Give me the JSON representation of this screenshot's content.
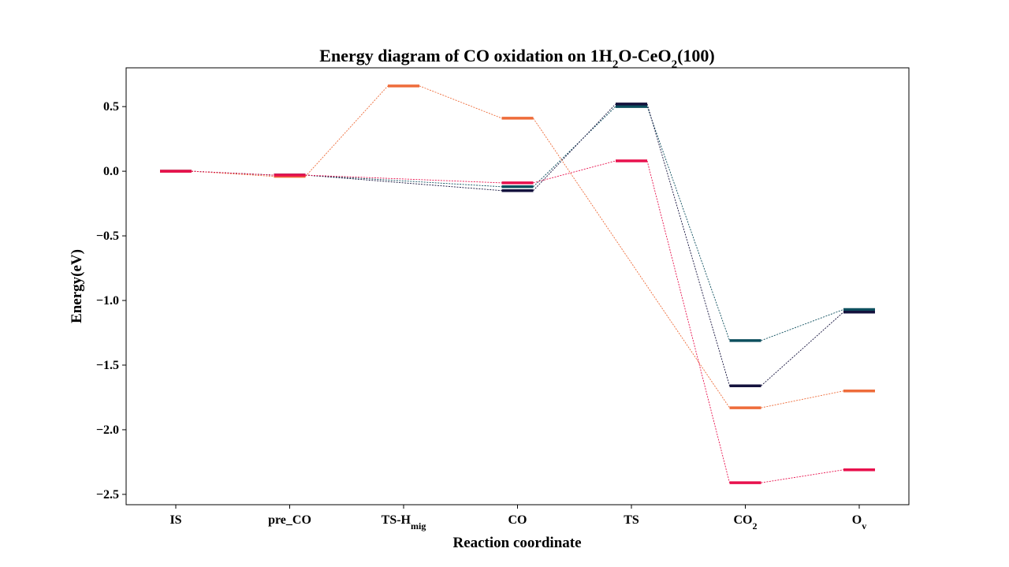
{
  "chart_data": {
    "type": "line",
    "title": {
      "parts": [
        {
          "text": "Energy diagram of CO oxidation on 1H",
          "style": "normal"
        },
        {
          "text": "2",
          "style": "sub"
        },
        {
          "text": "O-CeO",
          "style": "normal"
        },
        {
          "text": "2",
          "style": "sub"
        },
        {
          "text": "(100)",
          "style": "normal"
        }
      ]
    },
    "xlabel": "Reaction coordinate",
    "ylabel": "Energy(eV)",
    "ylim": [
      -2.58,
      0.8
    ],
    "yticks": [
      {
        "value": 0.5,
        "label": "0.5"
      },
      {
        "value": 0.0,
        "label": "0.0"
      },
      {
        "value": -0.5,
        "label": "−0.5"
      },
      {
        "value": -1.0,
        "label": "−1.0"
      },
      {
        "value": -1.5,
        "label": "−1.5"
      },
      {
        "value": -2.0,
        "label": "−2.0"
      },
      {
        "value": -2.5,
        "label": "−2.5"
      }
    ],
    "categories": [
      {
        "parts": [
          {
            "text": "IS",
            "style": "normal"
          }
        ]
      },
      {
        "parts": [
          {
            "text": "pre_CO",
            "style": "normal"
          }
        ]
      },
      {
        "parts": [
          {
            "text": "TS-H",
            "style": "normal"
          },
          {
            "text": "mig",
            "style": "sub"
          }
        ]
      },
      {
        "parts": [
          {
            "text": "CO",
            "style": "normal"
          }
        ]
      },
      {
        "parts": [
          {
            "text": "TS",
            "style": "normal"
          }
        ]
      },
      {
        "parts": [
          {
            "text": "CO",
            "style": "normal"
          },
          {
            "text": "2",
            "style": "sub"
          }
        ]
      },
      {
        "parts": [
          {
            "text": "O",
            "style": "normal"
          },
          {
            "text": "v",
            "style": "sub"
          }
        ]
      }
    ],
    "series": [
      {
        "color": "#0d4f5e",
        "values": [
          0.0,
          -0.03,
          null,
          -0.12,
          0.5,
          -1.31,
          -1.07
        ]
      },
      {
        "color": "#14123d",
        "values": [
          0.0,
          -0.03,
          null,
          -0.15,
          0.52,
          -1.66,
          -1.09
        ]
      },
      {
        "color": "#ee6c3a",
        "values": [
          0.0,
          -0.04,
          0.66,
          0.41,
          null,
          -1.83,
          -1.7
        ]
      },
      {
        "color": "#e8114d",
        "values": [
          0.0,
          -0.03,
          null,
          -0.09,
          0.08,
          -2.41,
          -2.31
        ]
      }
    ],
    "grid": false,
    "legend": "none"
  }
}
